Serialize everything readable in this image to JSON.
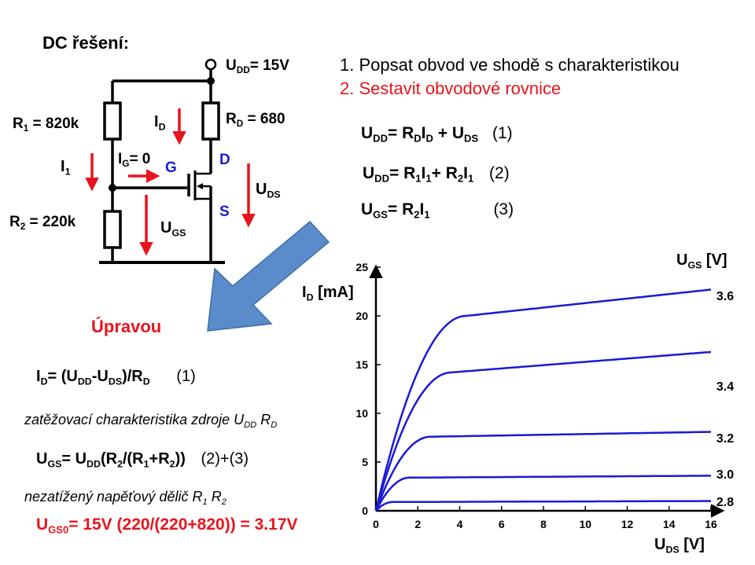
{
  "slide": {
    "title": "DC řešení:",
    "steps": [
      "1. Popsat obvod ve shodě s charakteristikou",
      "2. Sestavit obvodové rovnice"
    ]
  },
  "circuit": {
    "udd": {
      "main": "U",
      "sub": "DD",
      "rest": "= 15V"
    },
    "r1": {
      "main": "R",
      "sub": "1",
      "rest": " = 820k"
    },
    "r2": {
      "main": "R",
      "sub": "2",
      "rest": " = 220k"
    },
    "rd": {
      "main": "R",
      "sub": "D",
      "rest": " = 680"
    },
    "id": {
      "main": "I",
      "sub": "D"
    },
    "i1": {
      "main": "I",
      "sub": "1"
    },
    "ig": {
      "main": "I",
      "sub": "G",
      "rest": "= 0"
    },
    "ugs": {
      "main": "U",
      "sub": "GS"
    },
    "uds": {
      "main": "U",
      "sub": "DS"
    },
    "gate": "G",
    "drain": "D",
    "source": "S",
    "upravou": "Úpravou"
  },
  "equations": {
    "eq1": {
      "a": "U",
      "a_sub": "DD",
      "b": "= R",
      "b_sub": "D",
      "c": "I",
      "c_sub": "D",
      "d": " + U",
      "d_sub": "DS",
      "tag": "(1)"
    },
    "eq2": {
      "a": "U",
      "a_sub": "DD",
      "b": "= R",
      "b_sub": "1",
      "c": "I",
      "c_sub": "1",
      "d": "+ R",
      "d_sub": "2",
      "e": "I",
      "e_sub": "1",
      "tag": "(2)"
    },
    "eq3": {
      "a": "U",
      "a_sub": "GS",
      "b": "= R",
      "b_sub": "2",
      "c": "I",
      "c_sub": "1",
      "tag": "(3)"
    }
  },
  "lower": {
    "id_eq": {
      "a": "I",
      "a_sub": "D",
      "b": "= (U",
      "b_sub": "DD",
      "c": "-U",
      "c_sub": "DS",
      "d": ")/R",
      "d_sub": "D",
      "tag": "(1)"
    },
    "load_text": {
      "text": "zatěžovací charakteristika zdroje U",
      "sub1": "DD",
      "mid": " R",
      "sub2": "D"
    },
    "ugs_eq": {
      "a": "U",
      "a_sub": "GS",
      "b": "= U",
      "b_sub": "DD",
      "c": "(R",
      "c_sub": "2",
      "d": "/(R",
      "d_sub": "1",
      "e": "+R",
      "e_sub": "2",
      "f": "))",
      "tag": "(2)+(3)"
    },
    "divider_text": {
      "text": "nezatížený napěťový dělič R",
      "sub1": "1",
      "mid": " R",
      "sub2": "2"
    },
    "ugs0_eq": {
      "a": "U",
      "a_sub": "GS0",
      "b": "= 15V (220/(220+820)) = 3.17V"
    }
  },
  "chart_data": {
    "type": "line",
    "xlabel": {
      "main": "U",
      "sub": "DS",
      "unit": " [V]"
    },
    "ylabel": {
      "main": "I",
      "sub": "D",
      "unit": " [mA]"
    },
    "param_label": {
      "main": "U",
      "sub": "GS",
      "unit": " [V]"
    },
    "xlim": [
      0,
      16
    ],
    "ylim": [
      0,
      25
    ],
    "x_ticks": [
      "0",
      "2",
      "4",
      "6",
      "8",
      "10",
      "12",
      "14",
      "16"
    ],
    "y_ticks": [
      "0",
      "5",
      "10",
      "15",
      "20",
      "25"
    ],
    "curve_color": "#1a1ad6",
    "series": [
      {
        "name": "3.6",
        "sat_current": 20.0,
        "end_current": 22.7,
        "vknee": 4.3
      },
      {
        "name": "3.4",
        "sat_current": 14.2,
        "end_current": 16.3,
        "vknee": 3.6
      },
      {
        "name": "3.2",
        "sat_current": 7.6,
        "end_current": 8.1,
        "vknee": 2.6
      },
      {
        "name": "3.0",
        "sat_current": 3.4,
        "end_current": 3.6,
        "vknee": 1.6
      },
      {
        "name": "2.8",
        "sat_current": 0.9,
        "end_current": 1.0,
        "vknee": 0.8
      }
    ],
    "grid": false
  }
}
